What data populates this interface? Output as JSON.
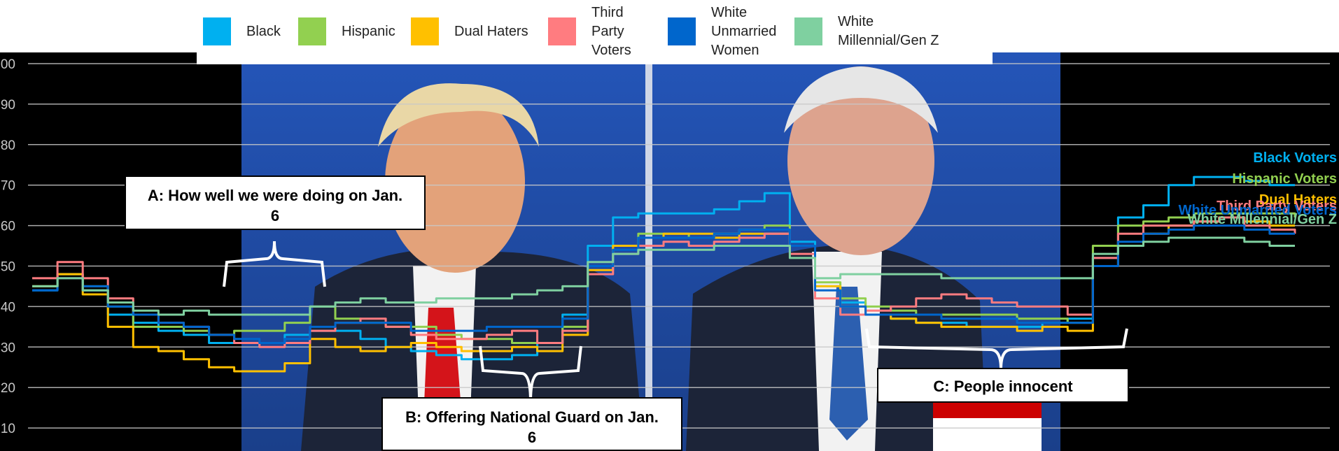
{
  "legend": {
    "items": [
      {
        "label": "Black",
        "color": "#00b0f0"
      },
      {
        "label": "Hispanic",
        "color": "#92d050"
      },
      {
        "label": "Dual Haters",
        "color": "#ffc000"
      },
      {
        "label": "Third Party Voters",
        "color": "#ff7c80"
      },
      {
        "label": "White Unmarried Women",
        "color": "#0066cc"
      },
      {
        "label": "White Millennial/Gen Z",
        "color": "#7fd0a0"
      }
    ]
  },
  "annotations": {
    "a": "A: How well we were doing on Jan. 6",
    "b": "B: Offering National Guard on Jan. 6",
    "c": "C: People innocent"
  },
  "chart_data": {
    "type": "line",
    "ylim": [
      0,
      100
    ],
    "y_ticks": [
      "00",
      "90",
      "80",
      "70",
      "60",
      "50",
      "40",
      "30",
      "20",
      "10"
    ],
    "grid": true,
    "end_labels": [
      {
        "text": "Black Voters",
        "color": "#00b0f0"
      },
      {
        "text": "Hispanic Voters",
        "color": "#92d050"
      },
      {
        "text": "Dual Haters",
        "color": "#ffc000"
      },
      {
        "text": "Third Party Voters",
        "color": "#ff7c80"
      },
      {
        "text": "White Unmarried Voters",
        "color": "#0066cc"
      },
      {
        "text": "White Millennial/Gen Z",
        "color": "#7fd0a0"
      }
    ],
    "series": [
      {
        "name": "Black",
        "color": "#00b0f0",
        "x": [
          0,
          2,
          4,
          6,
          8,
          10,
          12,
          14,
          16,
          18,
          20,
          22,
          24,
          26,
          28,
          30,
          32,
          34,
          36,
          38,
          40,
          42,
          44,
          46,
          48,
          50,
          52,
          54,
          56,
          58,
          60,
          62,
          64,
          66,
          68,
          70,
          72,
          74,
          76,
          78,
          80,
          82,
          84,
          86,
          88,
          90,
          92,
          94,
          96,
          98,
          100
        ],
        "y": [
          44,
          48,
          44,
          38,
          36,
          34,
          33,
          31,
          31,
          31,
          33,
          34,
          34,
          32,
          30,
          29,
          28,
          27,
          27,
          28,
          31,
          38,
          55,
          62,
          63,
          63,
          63,
          64,
          66,
          68,
          56,
          45,
          41,
          38,
          37,
          36,
          36,
          35,
          35,
          35,
          36,
          37,
          52,
          62,
          65,
          70,
          72,
          72,
          71,
          70,
          70
        ]
      },
      {
        "name": "Hispanic",
        "color": "#92d050",
        "x": [
          0,
          2,
          4,
          6,
          8,
          10,
          12,
          14,
          16,
          18,
          20,
          22,
          24,
          26,
          28,
          30,
          32,
          34,
          36,
          38,
          40,
          42,
          44,
          46,
          48,
          50,
          52,
          54,
          56,
          58,
          60,
          62,
          64,
          66,
          68,
          70,
          72,
          74,
          76,
          78,
          80,
          82,
          84,
          86,
          88,
          90,
          92,
          94,
          96,
          98,
          100
        ],
        "y": [
          45,
          48,
          45,
          40,
          35,
          35,
          34,
          33,
          34,
          34,
          36,
          40,
          37,
          36,
          35,
          35,
          33,
          32,
          32,
          31,
          31,
          35,
          50,
          55,
          58,
          58,
          57,
          58,
          59,
          60,
          55,
          46,
          42,
          40,
          39,
          38,
          38,
          38,
          38,
          37,
          37,
          36,
          55,
          60,
          61,
          62,
          63,
          63,
          63,
          63,
          62
        ]
      },
      {
        "name": "Dual Haters",
        "color": "#ffc000",
        "x": [
          0,
          2,
          4,
          6,
          8,
          10,
          12,
          14,
          16,
          18,
          20,
          22,
          24,
          26,
          28,
          30,
          32,
          34,
          36,
          38,
          40,
          42,
          44,
          46,
          48,
          50,
          52,
          54,
          56,
          58,
          60,
          62,
          64,
          66,
          68,
          70,
          72,
          74,
          76,
          78,
          80,
          82,
          84,
          86,
          88,
          90,
          92,
          94,
          96,
          98,
          100
        ],
        "y": [
          45,
          48,
          43,
          35,
          30,
          29,
          27,
          25,
          24,
          24,
          26,
          32,
          30,
          29,
          30,
          31,
          30,
          29,
          29,
          30,
          29,
          33,
          49,
          55,
          57,
          58,
          58,
          57,
          58,
          58,
          55,
          45,
          40,
          38,
          37,
          36,
          35,
          35,
          35,
          34,
          35,
          34,
          50,
          55,
          58,
          60,
          61,
          62,
          61,
          60,
          60
        ]
      },
      {
        "name": "Third Party Voters",
        "color": "#ff7c80",
        "x": [
          0,
          2,
          4,
          6,
          8,
          10,
          12,
          14,
          16,
          18,
          20,
          22,
          24,
          26,
          28,
          30,
          32,
          34,
          36,
          38,
          40,
          42,
          44,
          46,
          48,
          50,
          52,
          54,
          56,
          58,
          60,
          62,
          64,
          66,
          68,
          70,
          72,
          74,
          76,
          78,
          80,
          82,
          84,
          86,
          88,
          90,
          92,
          94,
          96,
          98,
          100
        ],
        "y": [
          47,
          51,
          47,
          42,
          38,
          36,
          35,
          33,
          31,
          30,
          31,
          34,
          36,
          37,
          35,
          33,
          32,
          32,
          33,
          34,
          31,
          34,
          48,
          53,
          55,
          56,
          55,
          56,
          57,
          58,
          53,
          42,
          38,
          39,
          40,
          42,
          43,
          42,
          41,
          40,
          40,
          38,
          52,
          58,
          60,
          60,
          61,
          62,
          60,
          59,
          58
        ]
      },
      {
        "name": "White Unmarried Women",
        "color": "#0066cc",
        "x": [
          0,
          2,
          4,
          6,
          8,
          10,
          12,
          14,
          16,
          18,
          20,
          22,
          24,
          26,
          28,
          30,
          32,
          34,
          36,
          38,
          40,
          42,
          44,
          46,
          48,
          50,
          52,
          54,
          56,
          58,
          60,
          62,
          64,
          66,
          68,
          70,
          72,
          74,
          76,
          78,
          80,
          82,
          84,
          86,
          88,
          90,
          92,
          94,
          96,
          98,
          100
        ],
        "y": [
          44,
          47,
          45,
          40,
          38,
          36,
          35,
          33,
          32,
          31,
          32,
          35,
          36,
          36,
          36,
          34,
          34,
          34,
          35,
          35,
          35,
          37,
          50,
          54,
          57,
          57,
          57,
          58,
          59,
          59,
          55,
          44,
          40,
          38,
          38,
          38,
          37,
          37,
          37,
          36,
          36,
          36,
          50,
          56,
          58,
          59,
          60,
          60,
          59,
          58,
          58
        ]
      },
      {
        "name": "White Millennial/Gen Z",
        "color": "#7fd0a0",
        "x": [
          0,
          2,
          4,
          6,
          8,
          10,
          12,
          14,
          16,
          18,
          20,
          22,
          24,
          26,
          28,
          30,
          32,
          34,
          36,
          38,
          40,
          42,
          44,
          46,
          48,
          50,
          52,
          54,
          56,
          58,
          60,
          62,
          64,
          66,
          68,
          70,
          72,
          74,
          76,
          78,
          80,
          82,
          84,
          86,
          88,
          90,
          92,
          94,
          96,
          98,
          100
        ],
        "y": [
          45,
          47,
          44,
          41,
          39,
          38,
          39,
          38,
          38,
          38,
          38,
          40,
          41,
          42,
          41,
          41,
          42,
          42,
          42,
          43,
          44,
          45,
          51,
          53,
          54,
          54,
          54,
          55,
          55,
          55,
          52,
          47,
          48,
          48,
          48,
          48,
          47,
          47,
          47,
          47,
          47,
          47,
          53,
          55,
          56,
          57,
          57,
          57,
          56,
          55,
          55
        ]
      }
    ]
  }
}
